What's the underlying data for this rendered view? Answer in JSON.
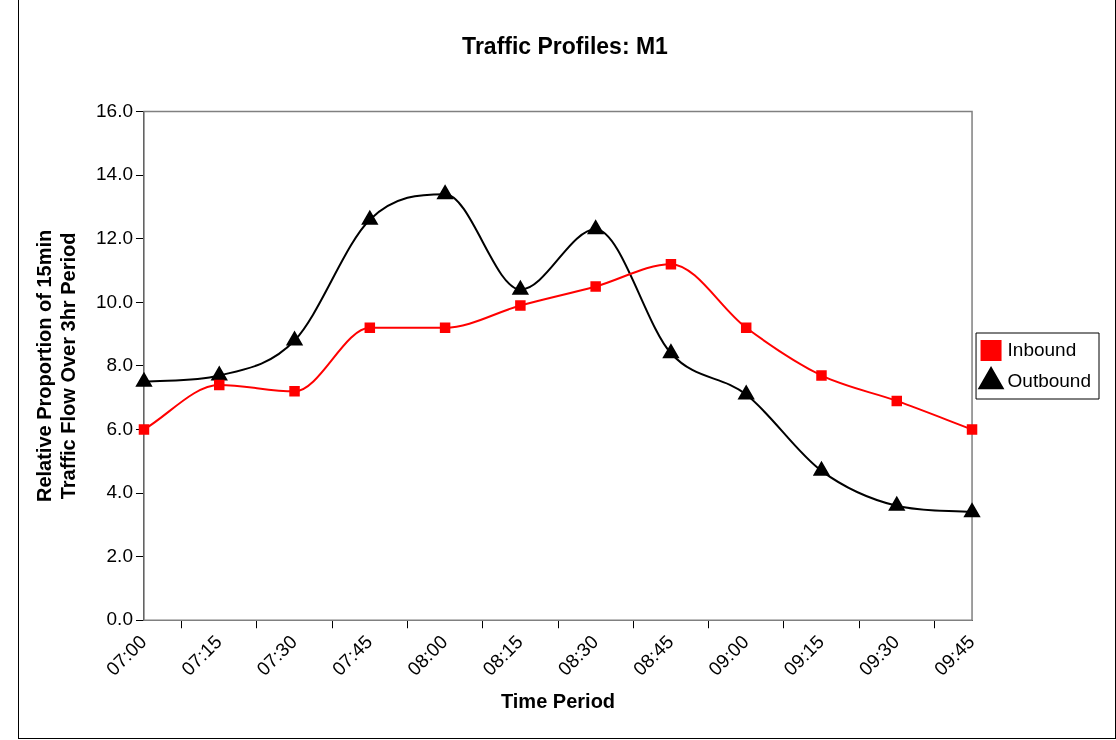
{
  "chart_data": {
    "type": "line",
    "title": "Traffic Profiles: M1",
    "xlabel": "Time Period",
    "ylabel": "Relative Proportion of 15min Traffic Flow Over 3hr Period",
    "categories": [
      "07:00",
      "07:15",
      "07:30",
      "07:45",
      "08:00",
      "08:15",
      "08:30",
      "08:45",
      "09:00",
      "09:15",
      "09:30",
      "09:45"
    ],
    "series": [
      {
        "name": "Inbound",
        "color": "#ff0000",
        "marker": "square",
        "values": [
          6.0,
          7.4,
          7.2,
          9.2,
          9.2,
          9.9,
          10.5,
          11.2,
          9.2,
          7.7,
          6.9,
          6.0
        ]
      },
      {
        "name": "Outbound",
        "color": "#000000",
        "marker": "triangle",
        "values": [
          7.5,
          7.7,
          8.8,
          12.6,
          13.4,
          10.4,
          12.3,
          8.4,
          7.1,
          4.7,
          3.6,
          3.4
        ]
      }
    ],
    "ylim": [
      0,
      16
    ],
    "yticks": [
      {
        "value": 0,
        "label": "0.0"
      },
      {
        "value": 2,
        "label": "2.0"
      },
      {
        "value": 4,
        "label": "4.0"
      },
      {
        "value": 6,
        "label": "6.0"
      },
      {
        "value": 8,
        "label": "8.0"
      },
      {
        "value": 10,
        "label": "10.0"
      },
      {
        "value": 12,
        "label": "12.0"
      },
      {
        "value": 14,
        "label": "14.0"
      },
      {
        "value": 16,
        "label": "16.0"
      }
    ],
    "grid": false,
    "legend": "right",
    "line_style": "solid"
  }
}
